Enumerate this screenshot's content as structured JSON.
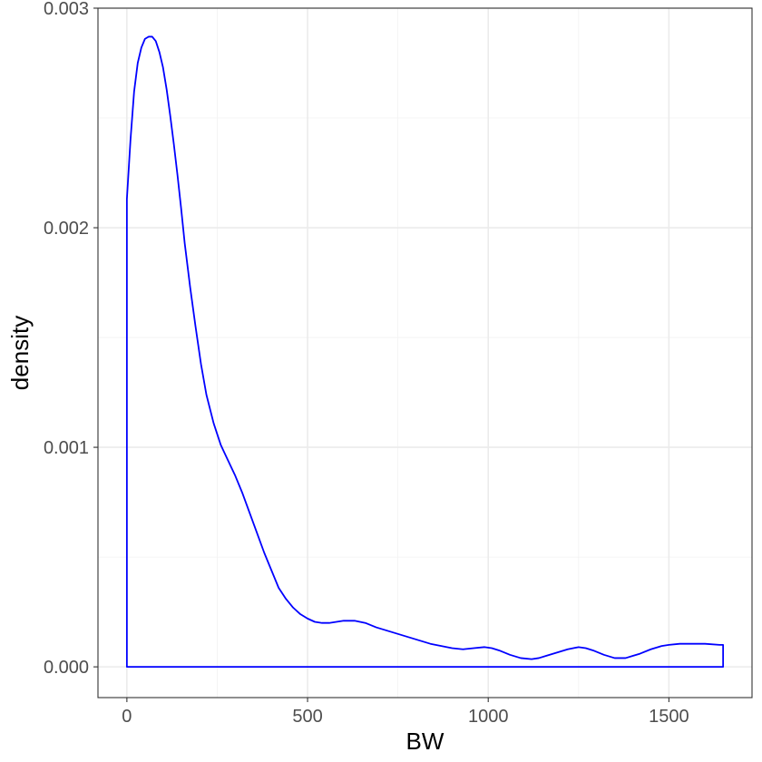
{
  "chart_data": {
    "type": "area",
    "xlabel": "BW",
    "ylabel": "density",
    "xlim": [
      -80,
      1730
    ],
    "ylim": [
      -0.00014,
      0.003
    ],
    "x_ticks": [
      0,
      500,
      1000,
      1500
    ],
    "x_tick_labels": [
      "0",
      "500",
      "1000",
      "1500"
    ],
    "y_ticks": [
      0,
      0.001,
      0.002,
      0.003
    ],
    "y_tick_labels": [
      "0.000",
      "0.001",
      "0.002",
      "0.003"
    ],
    "x_minor_ticks": [
      250,
      750,
      1250
    ],
    "y_minor_ticks": [
      0.0005,
      0.0015,
      0.0025
    ],
    "grid": true,
    "series": [
      {
        "color": "#0000ff",
        "fill": "none",
        "x": [
          0,
          10,
          20,
          30,
          40,
          50,
          60,
          70,
          80,
          90,
          100,
          110,
          120,
          130,
          140,
          150,
          160,
          175,
          190,
          205,
          220,
          240,
          260,
          280,
          300,
          320,
          340,
          360,
          380,
          400,
          420,
          440,
          460,
          480,
          500,
          520,
          540,
          560,
          580,
          600,
          630,
          660,
          690,
          720,
          750,
          780,
          810,
          840,
          870,
          900,
          930,
          960,
          990,
          1010,
          1030,
          1060,
          1090,
          1120,
          1140,
          1160,
          1190,
          1220,
          1250,
          1270,
          1290,
          1320,
          1350,
          1380,
          1400,
          1420,
          1450,
          1480,
          1500,
          1530,
          1560,
          1600,
          1640,
          1650
        ],
        "y": [
          0.00213,
          0.0024,
          0.00262,
          0.00275,
          0.00282,
          0.00286,
          0.00287,
          0.00287,
          0.00285,
          0.0028,
          0.00273,
          0.00263,
          0.00251,
          0.00238,
          0.00224,
          0.00209,
          0.00193,
          0.00173,
          0.00155,
          0.00138,
          0.00124,
          0.00111,
          0.00101,
          0.00094,
          0.00087,
          0.00079,
          0.0007,
          0.00061,
          0.00052,
          0.00044,
          0.00036,
          0.00031,
          0.00027,
          0.00024,
          0.00022,
          0.000205,
          0.0002,
          0.0002,
          0.000205,
          0.00021,
          0.00021,
          0.0002,
          0.00018,
          0.000165,
          0.00015,
          0.000135,
          0.00012,
          0.000105,
          9.5e-05,
          8.5e-05,
          8e-05,
          8.5e-05,
          9e-05,
          8.5e-05,
          7.5e-05,
          5.5e-05,
          4e-05,
          3.5e-05,
          4e-05,
          5e-05,
          6.5e-05,
          8e-05,
          9e-05,
          8.5e-05,
          7.5e-05,
          5.5e-05,
          4e-05,
          4e-05,
          5e-05,
          6e-05,
          8e-05,
          9.5e-05,
          0.0001,
          0.000105,
          0.000105,
          0.000105,
          0.0001,
          0.0001
        ]
      }
    ]
  }
}
